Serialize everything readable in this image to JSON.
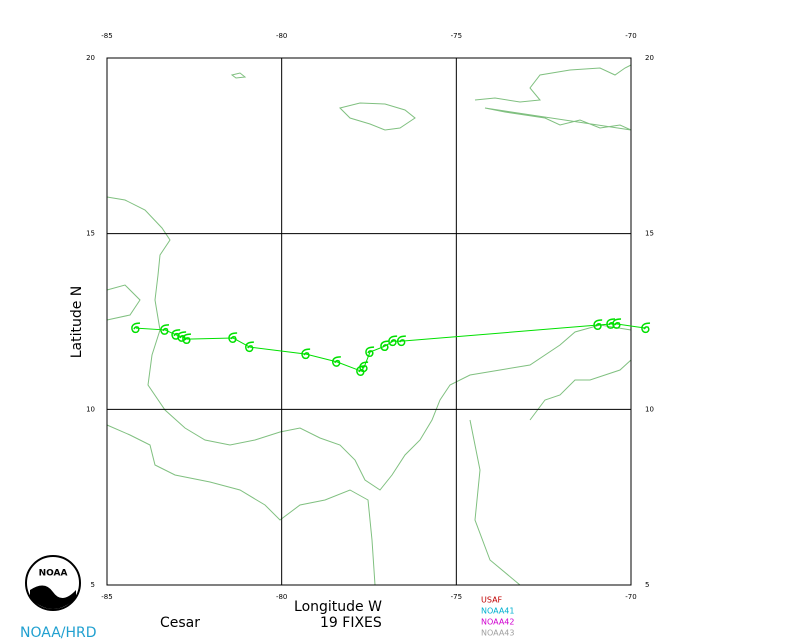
{
  "chart_data": {
    "type": "track",
    "storm_name": "Cesar",
    "fixes": "19 FIXES",
    "x_label": "Longitude W",
    "y_label": "Latitude N",
    "credit": "NOAA/HRD",
    "logo_text": "NOAA",
    "x": [
      -69.57,
      -70.4,
      -70.57,
      -70.94,
      -76.56,
      -76.81,
      -77.04,
      -77.47,
      -77.64,
      -77.73,
      -78.42,
      -79.3,
      -80.91,
      -81.39,
      -82.71,
      -82.85,
      -83.02,
      -83.34,
      -84.17
    ],
    "values": [
      12.31,
      12.43,
      12.43,
      12.4,
      11.94,
      11.94,
      11.8,
      11.63,
      11.2,
      11.09,
      11.35,
      11.57,
      11.77,
      12.03,
      12.0,
      12.06,
      12.12,
      12.26,
      12.31
    ],
    "color": "#00e000",
    "xlim": [
      -85,
      -70
    ],
    "ylim": [
      5,
      20
    ],
    "xticks": [
      -85,
      -80,
      -75,
      -70
    ],
    "yticks": [
      5,
      10,
      15,
      20
    ],
    "grid": true,
    "legend": [
      {
        "name": "USAF",
        "color": "#c00000"
      },
      {
        "name": "NOAA41",
        "color": "#00b0d0"
      },
      {
        "name": "NOAA42",
        "color": "#d000d0"
      },
      {
        "name": "NOAA43",
        "color": "#a0a0a0"
      }
    ]
  }
}
